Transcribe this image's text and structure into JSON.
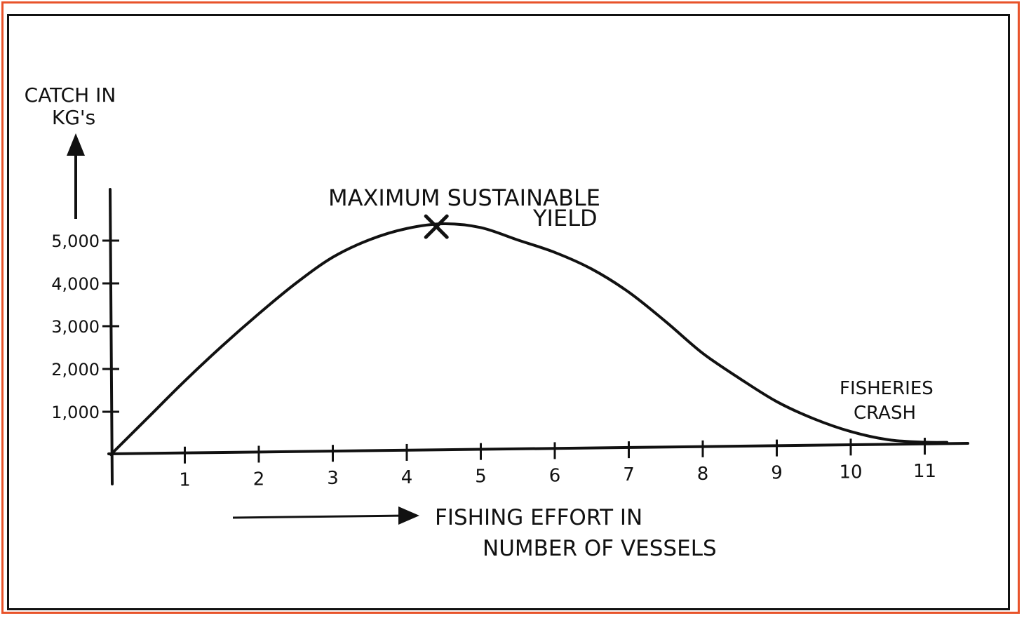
{
  "colors": {
    "frame": "#e8532a",
    "ink": "#111111",
    "paper": "#ffffff"
  },
  "chart_data": {
    "type": "line",
    "title": "",
    "ylabel_lines": [
      "CATCH IN",
      "KG's"
    ],
    "xlabel_lines": [
      "FISHING EFFORT IN",
      "NUMBER OF VESSELS"
    ],
    "x_ticks": [
      "1",
      "2",
      "3",
      "4",
      "5",
      "6",
      "7",
      "8",
      "9",
      "10",
      "11"
    ],
    "y_ticks": [
      "1,000",
      "2,000",
      "3,000",
      "4,000",
      "5,000"
    ],
    "xlim": [
      0,
      11.5
    ],
    "ylim": [
      0,
      5800
    ],
    "series": [
      {
        "x": [
          0,
          0.5,
          1,
          1.5,
          2,
          2.5,
          3,
          3.5,
          4,
          4.5,
          5,
          5.5,
          6,
          6.5,
          7,
          7.5,
          8,
          8.5,
          9,
          9.5,
          10,
          10.5,
          11,
          11.3
        ],
        "y": [
          0,
          850,
          1700,
          2500,
          3250,
          3950,
          4550,
          4950,
          5200,
          5300,
          5200,
          4900,
          4600,
          4200,
          3650,
          2950,
          2200,
          1600,
          1050,
          640,
          330,
          130,
          60,
          50
        ]
      }
    ],
    "annotations": [
      {
        "label_lines": [
          "MAXIMUM SUSTAINABLE",
          "YIELD"
        ],
        "x": 4.4,
        "y": 5300,
        "marker": "x"
      },
      {
        "label_lines": [
          "FISHERIES",
          "CRASH"
        ],
        "x": 11.2,
        "y": 50
      }
    ]
  }
}
